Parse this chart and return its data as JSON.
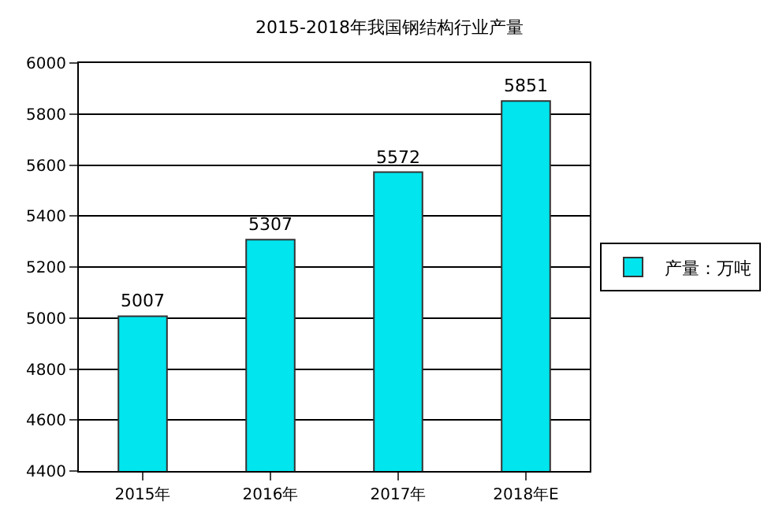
{
  "chart_data": {
    "type": "bar",
    "title": "2015-2018年我国钢结构行业产量",
    "categories": [
      "2015年",
      "2016年",
      "2017年",
      "2018年E"
    ],
    "series": [
      {
        "name": "产量：万吨",
        "color": "#00e5ee",
        "values": [
          5007,
          5307,
          5572,
          5851
        ]
      }
    ],
    "ylim": [
      4400,
      6000
    ],
    "yticks": [
      4400,
      4600,
      4800,
      5000,
      5200,
      5400,
      5600,
      5800,
      6000
    ],
    "grid": "y",
    "legend": "right",
    "data_labels": true
  }
}
